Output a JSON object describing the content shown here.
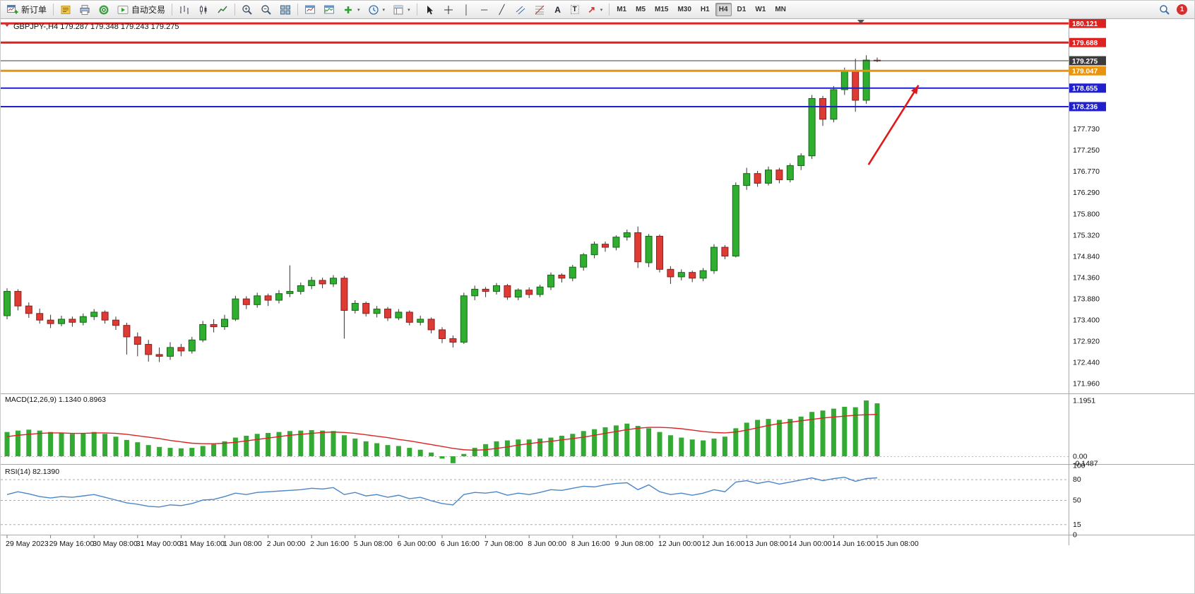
{
  "toolbar": {
    "new_order_label": "新订单",
    "autotrade_label": "自动交易",
    "timeframes": [
      "M1",
      "M5",
      "M15",
      "M30",
      "H1",
      "H4",
      "D1",
      "W1",
      "MN"
    ],
    "active_timeframe": "H4",
    "notification_count": "1",
    "glyphs": {
      "vertical_line": "│",
      "horizontal_line": "─",
      "trendline": "╱",
      "text": "A",
      "text_label": "T",
      "arrows": "↗",
      "dropdown": "▾"
    }
  },
  "chart": {
    "info_line": "GBPJPY-,H4  179.287 179.348 179.243 179.275"
  },
  "chart_data": [
    {
      "type": "candlestick",
      "title": "GBPJPY- H4",
      "current_price": 179.275,
      "bull_color": "#2fae2f",
      "bear_color": "#dd3b33",
      "bars_per_label": 4,
      "shift_marker_index": 78.5,
      "x_labels": [
        "29 May 2023",
        "29 May 16:00",
        "30 May 08:00",
        "31 May 00:00",
        "31 May 16:00",
        "1 Jun 08:00",
        "2 Jun 00:00",
        "2 Jun 16:00",
        "5 Jun 08:00",
        "6 Jun 00:00",
        "6 Jun 16:00",
        "7 Jun 08:00",
        "8 Jun 00:00",
        "8 Jun 16:00",
        "9 Jun 08:00",
        "12 Jun 00:00",
        "12 Jun 16:00",
        "13 Jun 08:00",
        "14 Jun 00:00",
        "14 Jun 16:00",
        "15 Jun 08:00"
      ],
      "y_axis_ticks": [
        "177.730",
        "177.250",
        "176.770",
        "176.290",
        "175.800",
        "175.320",
        "174.840",
        "174.360",
        "173.880",
        "173.400",
        "172.920",
        "172.440",
        "171.960"
      ],
      "levels": [
        {
          "price": "180.121",
          "value": 180.121,
          "line_color": "#dd2222",
          "width": 3,
          "tag_color": "#dd2222"
        },
        {
          "price": "179.688",
          "value": 179.688,
          "line_color": "#dd2222",
          "width": 3,
          "tag_color": "#dd2222"
        },
        {
          "price": "179.275",
          "value": 179.275,
          "line_color": "#3c3c3c",
          "width": 1,
          "tag_color": "#3c3c3c",
          "is_current": true
        },
        {
          "price": "179.047",
          "value": 179.047,
          "line_color": "#e8940f",
          "width": 3,
          "tag_color": "#e8940f"
        },
        {
          "price": "178.655",
          "value": 178.655,
          "line_color": "#2020cc",
          "width": 2,
          "tag_color": "#2020cc"
        },
        {
          "price": "178.236",
          "value": 178.236,
          "line_color": "#2020cc",
          "width": 2,
          "tag_color": "#2020cc"
        }
      ],
      "arrow": {
        "from": {
          "index": 79.2,
          "price": 176.92
        },
        "to": {
          "index": 83.8,
          "price": 178.72
        },
        "color": "#e01818"
      },
      "candles_ohlc": [
        [
          173.5,
          174.12,
          173.42,
          174.05
        ],
        [
          174.05,
          174.1,
          173.62,
          173.72
        ],
        [
          173.72,
          173.8,
          173.45,
          173.55
        ],
        [
          173.55,
          173.66,
          173.32,
          173.4
        ],
        [
          173.4,
          173.52,
          173.22,
          173.32
        ],
        [
          173.32,
          173.5,
          173.26,
          173.42
        ],
        [
          173.42,
          173.48,
          173.25,
          173.35
        ],
        [
          173.35,
          173.55,
          173.28,
          173.48
        ],
        [
          173.48,
          173.65,
          173.4,
          173.58
        ],
        [
          173.58,
          173.62,
          173.32,
          173.4
        ],
        [
          173.4,
          173.48,
          173.18,
          173.28
        ],
        [
          173.28,
          173.34,
          172.62,
          173.02
        ],
        [
          173.02,
          173.12,
          172.58,
          172.85
        ],
        [
          172.85,
          172.95,
          172.46,
          172.62
        ],
        [
          172.62,
          172.78,
          172.45,
          172.58
        ],
        [
          172.58,
          172.9,
          172.5,
          172.78
        ],
        [
          172.78,
          172.86,
          172.58,
          172.7
        ],
        [
          172.7,
          173.02,
          172.64,
          172.95
        ],
        [
          172.95,
          173.38,
          172.9,
          173.3
        ],
        [
          173.3,
          173.42,
          173.12,
          173.25
        ],
        [
          173.25,
          173.52,
          173.18,
          173.42
        ],
        [
          173.42,
          173.95,
          173.38,
          173.88
        ],
        [
          173.88,
          173.94,
          173.65,
          173.75
        ],
        [
          173.75,
          174.02,
          173.68,
          173.95
        ],
        [
          173.95,
          174.0,
          173.72,
          173.85
        ],
        [
          173.85,
          174.08,
          173.78,
          174.0
        ],
        [
          174.0,
          174.64,
          173.92,
          174.05
        ],
        [
          174.05,
          174.25,
          173.98,
          174.18
        ],
        [
          174.18,
          174.38,
          174.1,
          174.3
        ],
        [
          174.3,
          174.36,
          174.12,
          174.22
        ],
        [
          174.22,
          174.42,
          174.15,
          174.35
        ],
        [
          174.35,
          174.4,
          172.98,
          173.62
        ],
        [
          173.62,
          173.85,
          173.55,
          173.78
        ],
        [
          173.78,
          173.82,
          173.48,
          173.55
        ],
        [
          173.55,
          173.72,
          173.46,
          173.65
        ],
        [
          173.65,
          173.7,
          173.38,
          173.45
        ],
        [
          173.45,
          173.65,
          173.4,
          173.58
        ],
        [
          173.58,
          173.62,
          173.28,
          173.35
        ],
        [
          173.35,
          173.5,
          173.28,
          173.42
        ],
        [
          173.42,
          173.46,
          173.1,
          173.18
        ],
        [
          173.18,
          173.24,
          172.88,
          172.98
        ],
        [
          172.98,
          173.05,
          172.78,
          172.9
        ],
        [
          172.9,
          174.02,
          172.86,
          173.95
        ],
        [
          173.95,
          174.18,
          173.85,
          174.1
        ],
        [
          174.1,
          174.15,
          173.92,
          174.05
        ],
        [
          174.05,
          174.24,
          173.98,
          174.18
        ],
        [
          174.18,
          174.22,
          173.86,
          173.92
        ],
        [
          173.92,
          174.12,
          173.85,
          174.08
        ],
        [
          174.08,
          174.14,
          173.9,
          173.98
        ],
        [
          173.98,
          174.2,
          173.92,
          174.15
        ],
        [
          174.15,
          174.48,
          174.08,
          174.42
        ],
        [
          174.42,
          174.46,
          174.25,
          174.35
        ],
        [
          174.35,
          174.65,
          174.28,
          174.6
        ],
        [
          174.6,
          174.92,
          174.52,
          174.88
        ],
        [
          174.88,
          175.18,
          174.8,
          175.12
        ],
        [
          175.12,
          175.18,
          174.95,
          175.05
        ],
        [
          175.05,
          175.32,
          174.98,
          175.28
        ],
        [
          175.28,
          175.45,
          175.2,
          175.38
        ],
        [
          175.38,
          175.52,
          174.58,
          174.72
        ],
        [
          174.7,
          175.35,
          174.6,
          175.3
        ],
        [
          175.3,
          175.34,
          174.48,
          174.55
        ],
        [
          174.55,
          174.62,
          174.22,
          174.38
        ],
        [
          174.38,
          174.55,
          174.3,
          174.48
        ],
        [
          174.48,
          174.52,
          174.26,
          174.35
        ],
        [
          174.35,
          174.58,
          174.28,
          174.52
        ],
        [
          174.52,
          175.12,
          174.45,
          175.05
        ],
        [
          175.05,
          175.1,
          174.78,
          174.85
        ],
        [
          174.85,
          176.52,
          174.82,
          176.45
        ],
        [
          176.45,
          176.85,
          176.35,
          176.72
        ],
        [
          176.72,
          176.78,
          176.42,
          176.5
        ],
        [
          176.5,
          176.88,
          176.45,
          176.8
        ],
        [
          176.8,
          176.85,
          176.5,
          176.58
        ],
        [
          176.58,
          176.95,
          176.52,
          176.9
        ],
        [
          176.9,
          177.18,
          176.8,
          177.12
        ],
        [
          177.12,
          178.5,
          177.05,
          178.42
        ],
        [
          178.42,
          178.48,
          177.8,
          177.95
        ],
        [
          177.95,
          178.7,
          177.88,
          178.62
        ],
        [
          178.62,
          179.12,
          178.5,
          179.05
        ],
        [
          179.05,
          179.32,
          178.12,
          178.38
        ],
        [
          178.38,
          179.4,
          178.3,
          179.29
        ],
        [
          179.287,
          179.348,
          179.243,
          179.275
        ]
      ]
    },
    {
      "type": "bar",
      "name": "MACD(12,26,9)",
      "label": "MACD(12,26,9) 1.1340 0.8963",
      "histogram_color": "#33aa33",
      "signal_color": "#dd2222",
      "scale_labels": [
        [
          "1.1951",
          1.1951
        ],
        [
          "0.00",
          0
        ],
        [
          "-0.1487",
          -0.1487
        ]
      ],
      "values": [
        0.52,
        0.55,
        0.57,
        0.55,
        0.52,
        0.5,
        0.48,
        0.5,
        0.52,
        0.48,
        0.42,
        0.35,
        0.3,
        0.24,
        0.2,
        0.18,
        0.17,
        0.18,
        0.22,
        0.26,
        0.32,
        0.4,
        0.44,
        0.48,
        0.5,
        0.52,
        0.54,
        0.55,
        0.56,
        0.55,
        0.54,
        0.45,
        0.38,
        0.32,
        0.28,
        0.24,
        0.22,
        0.18,
        0.14,
        0.08,
        -0.05,
        -0.1487,
        0.05,
        0.18,
        0.26,
        0.32,
        0.34,
        0.36,
        0.36,
        0.38,
        0.4,
        0.44,
        0.48,
        0.54,
        0.58,
        0.62,
        0.66,
        0.7,
        0.65,
        0.6,
        0.52,
        0.45,
        0.4,
        0.36,
        0.34,
        0.38,
        0.42,
        0.6,
        0.72,
        0.78,
        0.8,
        0.78,
        0.8,
        0.85,
        0.95,
        0.98,
        1.02,
        1.06,
        1.05,
        1.1951,
        1.134
      ],
      "signal": [
        0.42,
        0.45,
        0.47,
        0.49,
        0.5,
        0.5,
        0.49,
        0.49,
        0.5,
        0.5,
        0.49,
        0.47,
        0.44,
        0.41,
        0.38,
        0.34,
        0.31,
        0.28,
        0.27,
        0.27,
        0.28,
        0.3,
        0.33,
        0.36,
        0.39,
        0.42,
        0.45,
        0.47,
        0.49,
        0.51,
        0.52,
        0.51,
        0.49,
        0.46,
        0.43,
        0.4,
        0.36,
        0.33,
        0.29,
        0.25,
        0.21,
        0.17,
        0.14,
        0.13,
        0.14,
        0.17,
        0.2,
        0.24,
        0.27,
        0.3,
        0.32,
        0.35,
        0.38,
        0.41,
        0.45,
        0.49,
        0.53,
        0.57,
        0.6,
        0.62,
        0.62,
        0.61,
        0.59,
        0.56,
        0.53,
        0.51,
        0.5,
        0.52,
        0.56,
        0.61,
        0.66,
        0.7,
        0.73,
        0.76,
        0.79,
        0.82,
        0.84,
        0.86,
        0.88,
        0.89,
        0.8963
      ]
    },
    {
      "type": "line",
      "name": "RSI(14)",
      "label": "RSI(14) 82.1390",
      "line_color": "#4a86c8",
      "range": [
        0,
        100
      ],
      "levels": [
        80,
        50,
        15
      ],
      "scale_labels": [
        [
          "100",
          100
        ],
        [
          "80",
          80
        ],
        [
          "50",
          50
        ],
        [
          "15",
          15
        ],
        [
          "0",
          0
        ]
      ],
      "values": [
        58,
        62,
        59,
        55,
        53,
        55,
        54,
        56,
        58,
        54,
        50,
        46,
        44,
        41,
        40,
        43,
        42,
        45,
        50,
        51,
        55,
        60,
        58,
        61,
        62,
        63,
        64,
        65,
        67,
        66,
        68,
        58,
        61,
        56,
        58,
        54,
        57,
        52,
        54,
        49,
        45,
        43,
        58,
        61,
        60,
        62,
        57,
        60,
        58,
        61,
        65,
        64,
        67,
        70,
        69,
        72,
        74,
        75,
        65,
        72,
        62,
        58,
        60,
        57,
        60,
        65,
        62,
        76,
        78,
        74,
        77,
        73,
        76,
        79,
        82,
        78,
        81,
        83,
        77,
        81,
        82.139
      ]
    }
  ]
}
